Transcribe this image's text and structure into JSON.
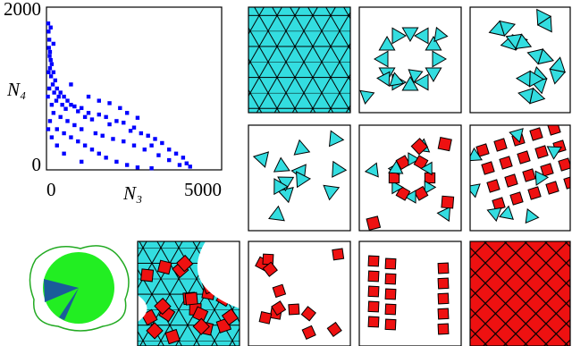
{
  "chart_data": {
    "type": "scatter",
    "x_label": "N₃",
    "y_label": "N₄",
    "color": "#0000ff",
    "x": [
      50,
      60,
      80,
      70,
      100,
      90,
      120,
      150,
      100,
      200,
      130,
      250,
      180,
      300,
      220,
      400,
      350,
      500,
      280,
      600,
      450,
      700,
      150,
      800,
      1000,
      1200,
      550,
      900,
      1100,
      1500,
      1300,
      1700,
      2000,
      1800,
      2200,
      2500,
      2400,
      2700,
      2900,
      3100,
      3300,
      3000,
      3500,
      3700,
      3900,
      4000,
      4100,
      3800,
      3500,
      3200,
      2800,
      2500,
      2200,
      1900,
      1600,
      1400,
      1000,
      800,
      600,
      400,
      200,
      100,
      300,
      500,
      700,
      900,
      1100,
      1300,
      1500,
      1700,
      2000,
      2300,
      2600,
      3000,
      1000,
      500,
      300,
      150,
      50,
      80,
      60,
      40,
      200,
      120,
      700,
      1200,
      1500,
      2100,
      2600,
      1800,
      2300
    ],
    "values": [
      1800,
      1700,
      1600,
      1500,
      1450,
      1400,
      1350,
      1300,
      1250,
      1200,
      1150,
      1100,
      1050,
      1000,
      950,
      950,
      900,
      900,
      850,
      850,
      800,
      800,
      800,
      780,
      760,
      700,
      750,
      720,
      650,
      680,
      620,
      650,
      600,
      560,
      580,
      520,
      480,
      450,
      420,
      380,
      330,
      300,
      250,
      200,
      150,
      80,
      40,
      60,
      120,
      180,
      250,
      300,
      350,
      380,
      420,
      450,
      500,
      550,
      600,
      650,
      700,
      600,
      500,
      450,
      400,
      350,
      300,
      250,
      200,
      150,
      100,
      60,
      30,
      20,
      100,
      200,
      300,
      400,
      500,
      1000,
      1200,
      900,
      1550,
      1750,
      1050,
      900,
      850,
      760,
      640,
      820,
      700
    ],
    "xlim": [
      0,
      5000
    ],
    "ylim": [
      0,
      2000
    ],
    "xticks": [
      0,
      5000
    ],
    "yticks": [
      0,
      2000
    ]
  }
}
